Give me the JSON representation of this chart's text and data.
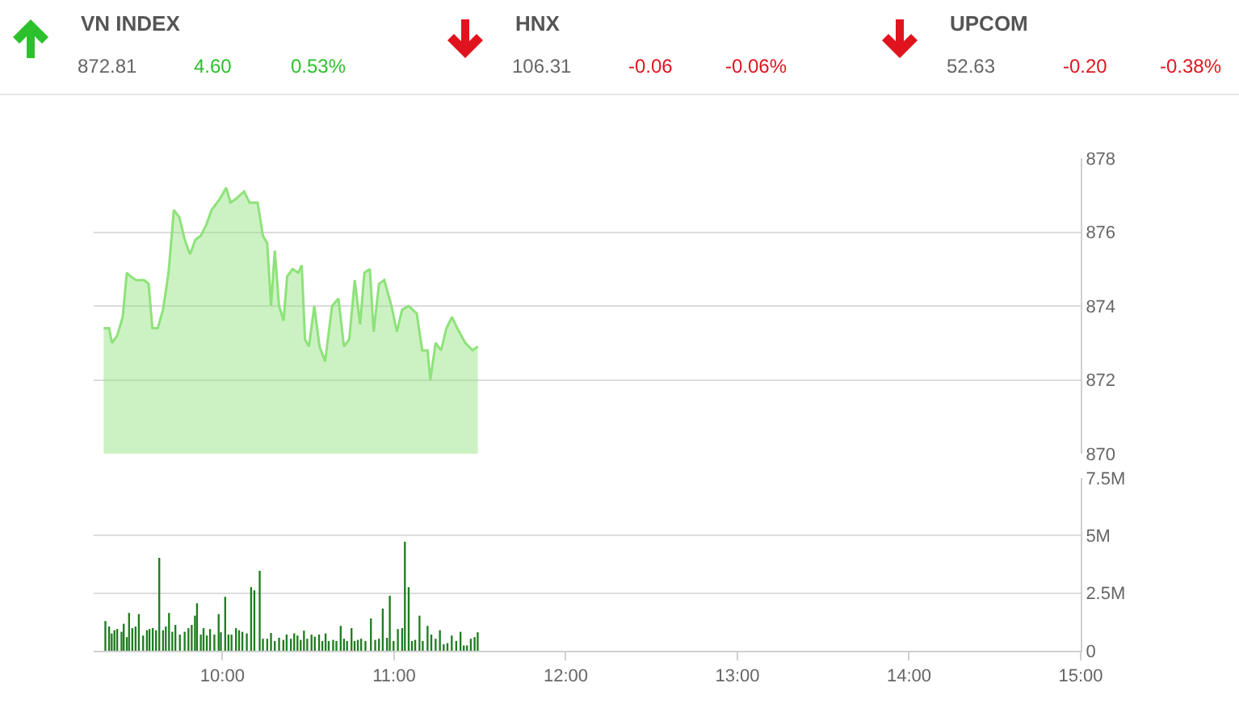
{
  "chart_data": [
    {
      "type": "other",
      "categories": [
        "VN INDEX",
        "HNX",
        "UPCOM"
      ],
      "values": [
        4.6,
        -0.06,
        -0.2
      ],
      "value_labels": [
        "4.60",
        "-0.06",
        "-0.20"
      ],
      "colors": [
        "#2cc12c",
        "#e0141e",
        "#e0141e"
      ],
      "annotations": [
        "872.81",
        "0.53%",
        "106.31",
        "-0.06%",
        "52.63",
        "-0.38%"
      ]
    },
    {
      "type": "area",
      "color": "#8ee27a",
      "x": [
        9.308,
        9.34,
        9.356,
        9.387,
        9.419,
        9.443,
        9.466,
        9.497,
        9.544,
        9.57,
        9.592,
        9.623,
        9.654,
        9.686,
        9.717,
        9.749,
        9.78,
        9.811,
        9.843,
        9.874,
        9.906,
        9.937,
        9.985,
        10.022,
        10.047,
        10.079,
        10.126,
        10.158,
        10.205,
        10.236,
        10.261,
        10.283,
        10.305,
        10.33,
        10.356,
        10.377,
        10.409,
        10.441,
        10.462,
        10.481,
        10.504,
        10.535,
        10.566,
        10.598,
        10.639,
        10.676,
        10.708,
        10.739,
        10.771,
        10.802,
        10.827,
        10.859,
        10.881,
        10.912,
        10.943,
        10.985,
        11.016,
        11.047,
        11.085,
        11.132,
        11.164,
        11.195,
        11.211,
        11.242,
        11.274,
        11.305,
        11.337,
        11.368,
        11.415,
        11.457,
        11.488
      ],
      "values": [
        873.4,
        873.4,
        873.0,
        873.2,
        873.7,
        874.9,
        874.8,
        874.7,
        874.7,
        874.6,
        873.4,
        873.4,
        873.9,
        874.9,
        876.6,
        876.4,
        875.8,
        875.4,
        875.8,
        875.9,
        876.2,
        876.6,
        876.9,
        877.2,
        876.8,
        876.9,
        877.1,
        876.8,
        876.8,
        875.9,
        875.7,
        874.0,
        875.5,
        874.0,
        873.6,
        874.8,
        875.0,
        874.9,
        875.1,
        873.1,
        872.9,
        874.0,
        872.9,
        872.5,
        874.0,
        874.2,
        872.9,
        873.1,
        874.7,
        873.5,
        874.9,
        875.0,
        873.3,
        874.6,
        874.7,
        874.0,
        873.3,
        873.9,
        874.0,
        873.8,
        872.8,
        872.8,
        872.0,
        873.0,
        872.8,
        873.4,
        873.7,
        873.4,
        873.0,
        872.8,
        872.9
      ],
      "xlim": [
        9.25,
        15
      ],
      "ylim": [
        870,
        878
      ],
      "yticks": [
        870,
        872,
        874,
        876,
        878
      ],
      "grid": "y",
      "tick_labels": "y"
    },
    {
      "type": "bar",
      "color": "#1e7d1e",
      "x": [
        9.318,
        9.34,
        9.355,
        9.371,
        9.387,
        9.412,
        9.425,
        9.443,
        9.456,
        9.475,
        9.494,
        9.513,
        9.538,
        9.56,
        9.575,
        9.594,
        9.613,
        9.632,
        9.654,
        9.67,
        9.689,
        9.708,
        9.726,
        9.752,
        9.78,
        9.802,
        9.821,
        9.84,
        9.852,
        9.874,
        9.89,
        9.909,
        9.928,
        9.953,
        9.978,
        9.991,
        10.016,
        10.035,
        10.053,
        10.079,
        10.097,
        10.116,
        10.142,
        10.167,
        10.186,
        10.217,
        10.236,
        10.261,
        10.283,
        10.305,
        10.33,
        10.355,
        10.374,
        10.399,
        10.418,
        10.437,
        10.456,
        10.475,
        10.494,
        10.519,
        10.538,
        10.563,
        10.582,
        10.601,
        10.619,
        10.645,
        10.664,
        10.689,
        10.708,
        10.726,
        10.752,
        10.77,
        10.789,
        10.808,
        10.833,
        10.865,
        10.89,
        10.912,
        10.934,
        10.959,
        10.975,
        10.997,
        11.022,
        11.047,
        11.063,
        11.085,
        11.104,
        11.123,
        11.148,
        11.167,
        11.195,
        11.217,
        11.242,
        11.267,
        11.289,
        11.311,
        11.336,
        11.362,
        11.387,
        11.406,
        11.425,
        11.447,
        11.469,
        11.487
      ],
      "values": [
        1.29,
        1.05,
        0.75,
        0.89,
        0.94,
        0.82,
        1.17,
        0.59,
        1.64,
        0.98,
        1.05,
        1.59,
        0.66,
        0.89,
        0.94,
        0.98,
        0.89,
        4.03,
        0.89,
        1.05,
        1.64,
        0.82,
        1.12,
        0.7,
        0.82,
        0.98,
        1.12,
        1.52,
        2.06,
        0.7,
        0.98,
        0.66,
        0.94,
        0.7,
        1.59,
        0.8,
        2.34,
        0.7,
        0.7,
        0.98,
        0.89,
        0.82,
        0.75,
        2.76,
        2.62,
        3.47,
        0.52,
        0.52,
        0.77,
        0.42,
        0.56,
        0.47,
        0.7,
        0.52,
        0.75,
        0.66,
        0.47,
        0.87,
        0.52,
        0.7,
        0.61,
        0.7,
        0.42,
        0.75,
        0.42,
        0.47,
        0.42,
        1.08,
        0.52,
        0.42,
        0.98,
        0.42,
        0.47,
        0.52,
        0.42,
        1.4,
        0.47,
        0.52,
        1.83,
        0.56,
        2.39,
        0.42,
        0.94,
        0.98,
        4.73,
        2.76,
        0.42,
        0.47,
        1.52,
        0.42,
        1.08,
        0.7,
        0.52,
        0.89,
        0.28,
        0.33,
        0.66,
        0.42,
        0.82,
        0.23,
        0.23,
        0.52,
        0.59,
        0.8
      ],
      "xlim": [
        9.25,
        15
      ],
      "xticks": [
        {
          "value": 10,
          "label": "10:00"
        },
        {
          "value": 11,
          "label": "11:00"
        },
        {
          "value": 12,
          "label": "12:00"
        },
        {
          "value": 13,
          "label": "13:00"
        },
        {
          "value": 14,
          "label": "14:00"
        },
        {
          "value": 15,
          "label": "15:00"
        }
      ],
      "ylim": [
        0,
        7.5
      ],
      "yticks": [
        0,
        {
          "value": 2.5,
          "label": "2.5M"
        },
        {
          "value": 5,
          "label": "5M"
        },
        {
          "value": 7.5,
          "label": "7.5M"
        }
      ],
      "grid": "y"
    }
  ]
}
